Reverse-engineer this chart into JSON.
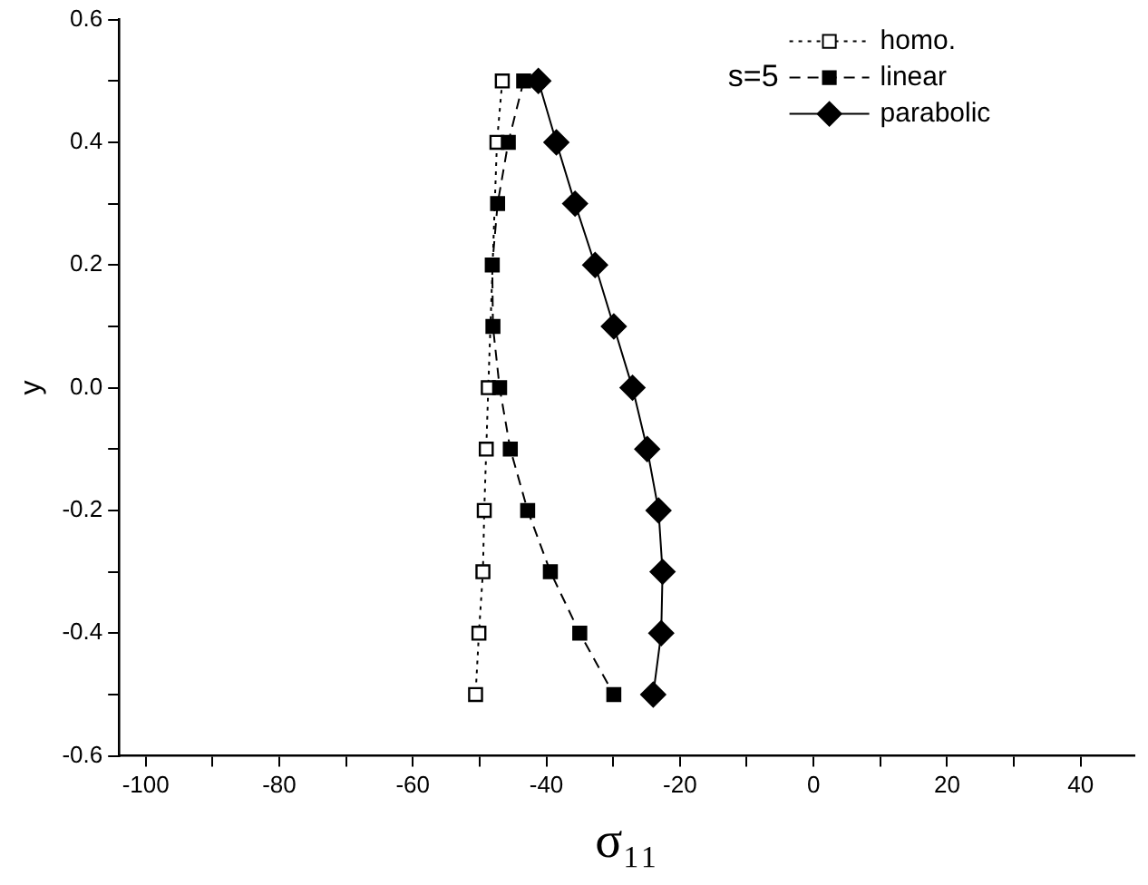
{
  "chart_data": {
    "type": "line",
    "xlabel": "σ₁₁",
    "ylabel": "y",
    "annotations": [
      "s=5"
    ],
    "xlim": [
      -104,
      48
    ],
    "ylim": [
      -0.6,
      0.6
    ],
    "xticks": [
      -100,
      {
        "value": -90,
        "label": null
      },
      -80,
      {
        "value": -70,
        "label": null
      },
      -60,
      {
        "value": -50,
        "label": null
      },
      -40,
      {
        "value": -30,
        "label": null
      },
      -20,
      {
        "value": -10,
        "label": null
      },
      0,
      {
        "value": 10,
        "label": null
      },
      20,
      {
        "value": 30,
        "label": null
      },
      40
    ],
    "yticks": [
      -0.6,
      {
        "value": -0.5,
        "label": null
      },
      -0.4,
      {
        "value": -0.3,
        "label": null
      },
      -0.2,
      {
        "value": -0.1,
        "label": null
      },
      {
        "value": 0,
        "label": "0.0"
      },
      {
        "value": 0.1,
        "label": null
      },
      0.2,
      {
        "value": 0.3,
        "label": null
      },
      0.4,
      {
        "value": 0.5,
        "label": null
      },
      0.6
    ],
    "grid": false,
    "legend": "top right",
    "series": [
      {
        "name": "homo.",
        "color": "#000000",
        "marker": "square",
        "line_style": "dotted",
        "x": [
          -46.6,
          -47.4,
          -48,
          -48.2,
          -48.5,
          -48.7,
          -49.0,
          -49.3,
          -49.5,
          -50.1,
          -50.6
        ],
        "values": [
          0.5,
          0.4,
          null,
          null,
          null,
          0,
          -0.1,
          -0.2,
          -0.3,
          -0.4,
          -0.5
        ]
      },
      {
        "name": "linear",
        "color": "#000000",
        "marker": "square",
        "line_style": "dashed",
        "x": [
          -43.4,
          -45.7,
          -47.3,
          -48.1,
          -48.0,
          -47.0,
          -45.4,
          -42.8,
          -39.4,
          -35.0,
          -29.9
        ],
        "values": [
          0.5,
          0.4,
          0.3,
          0.2,
          0.1,
          0,
          -0.1,
          -0.2,
          -0.3,
          -0.4,
          -0.5
        ]
      },
      {
        "name": "parabolic",
        "color": "#000000",
        "marker": "diamond",
        "line_style": "solid",
        "x": [
          -41.2,
          -38.5,
          -35.7,
          -32.7,
          -29.9,
          -27.1,
          -24.9,
          -23.2,
          -22.6,
          -22.8,
          -24.0
        ],
        "values": [
          0.5,
          0.4,
          0.3,
          0.2,
          0.1,
          0,
          -0.1,
          -0.2,
          -0.3,
          -0.4,
          -0.5
        ]
      }
    ]
  }
}
